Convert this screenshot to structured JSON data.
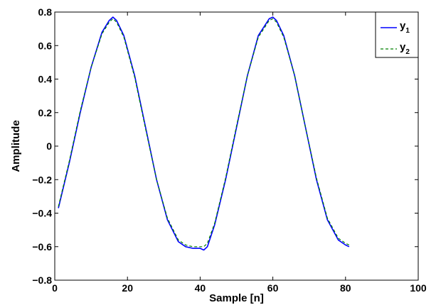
{
  "chart_data": {
    "type": "line",
    "xlabel": "Sample [n]",
    "ylabel": "Amplitude",
    "xlim": [
      0,
      100
    ],
    "ylim": [
      -0.8,
      0.8
    ],
    "x_ticks": [
      0,
      20,
      40,
      60,
      80,
      100
    ],
    "y_ticks": [
      -0.8,
      -0.6,
      -0.4,
      -0.2,
      0,
      0.2,
      0.4,
      0.6,
      0.8
    ],
    "y_tick_labels": [
      "−0.8",
      "−0.6",
      "−0.4",
      "−0.2",
      "0",
      "0.2",
      "0.4",
      "0.6",
      "0.8"
    ],
    "grid": false,
    "legend_position": "top-right",
    "series": [
      {
        "name": "y1",
        "label_main": "y",
        "label_sub": "1",
        "color": "#0000ff",
        "style": "solid",
        "x": [
          1,
          4,
          7,
          10,
          13,
          15,
          16,
          17,
          19,
          22,
          25,
          28,
          31,
          34,
          36,
          38,
          40,
          41,
          42,
          44,
          47,
          50,
          53,
          56,
          59,
          60,
          61,
          63,
          66,
          69,
          72,
          75,
          78,
          80,
          81
        ],
        "y": [
          -0.37,
          -0.1,
          0.2,
          0.47,
          0.68,
          0.75,
          0.77,
          0.75,
          0.66,
          0.42,
          0.11,
          -0.2,
          -0.44,
          -0.57,
          -0.6,
          -0.61,
          -0.61,
          -0.62,
          -0.6,
          -0.47,
          -0.2,
          0.11,
          0.42,
          0.66,
          0.76,
          0.77,
          0.75,
          0.66,
          0.42,
          0.11,
          -0.2,
          -0.44,
          -0.56,
          -0.59,
          -0.6
        ]
      },
      {
        "name": "y2",
        "label_main": "y",
        "label_sub": "2",
        "color": "#008000",
        "style": "dashed",
        "x": [
          1,
          4,
          7,
          10,
          13,
          15,
          16,
          17,
          19,
          22,
          25,
          28,
          31,
          34,
          36,
          38,
          40,
          41,
          42,
          44,
          47,
          50,
          53,
          56,
          59,
          60,
          61,
          63,
          66,
          69,
          72,
          75,
          78,
          80,
          81
        ],
        "y": [
          -0.36,
          -0.09,
          0.21,
          0.47,
          0.67,
          0.74,
          0.76,
          0.74,
          0.65,
          0.41,
          0.1,
          -0.2,
          -0.43,
          -0.56,
          -0.59,
          -0.6,
          -0.6,
          -0.6,
          -0.58,
          -0.46,
          -0.19,
          0.12,
          0.42,
          0.65,
          0.75,
          0.76,
          0.74,
          0.65,
          0.42,
          0.11,
          -0.19,
          -0.43,
          -0.55,
          -0.58,
          -0.59
        ]
      }
    ]
  }
}
